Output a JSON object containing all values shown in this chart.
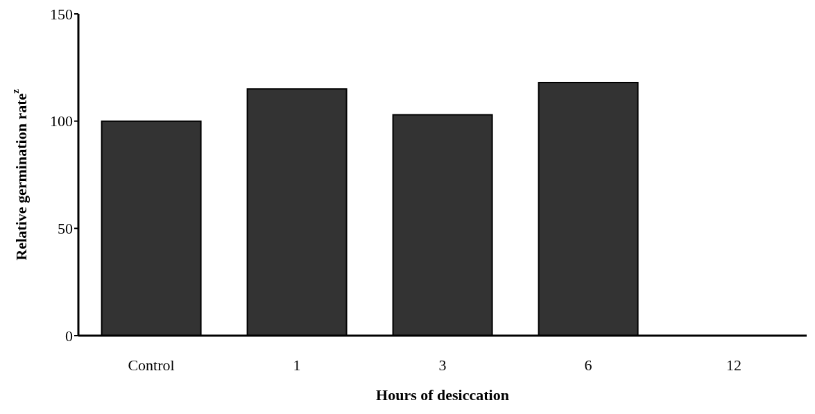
{
  "chart_data": {
    "type": "bar",
    "xlabel": "Hours of desiccation",
    "ylabel": "Relative germination rate$^{z}$",
    "categories": [
      "Control",
      "1",
      "3",
      "6",
      "12"
    ],
    "values": [
      100,
      115,
      103,
      118,
      0
    ],
    "color": "#333333",
    "ylim": [
      0,
      150
    ],
    "yticks": [
      0,
      50,
      100,
      150
    ],
    "grid": false,
    "legend": false
  }
}
